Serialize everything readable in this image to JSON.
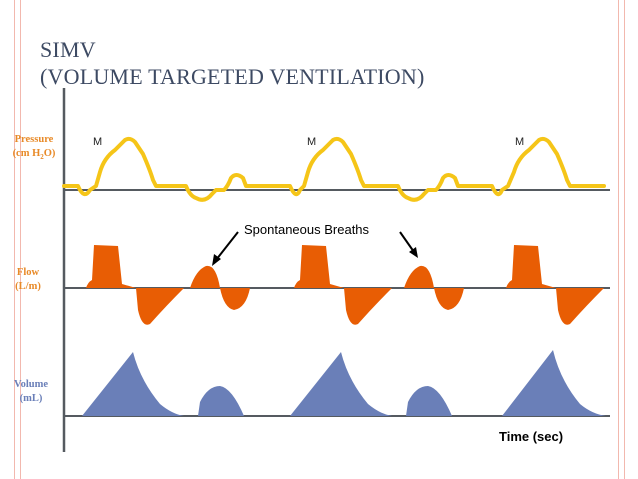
{
  "slide": {
    "title_line1": "SIMV",
    "title_line2": "(VOLUME TARGETED VENTILATION)"
  },
  "labels": {
    "pressure": "Pressure",
    "pressure_unit_pre": "(cm H",
    "pressure_unit_sub": "2",
    "pressure_unit_post": "O)",
    "flow": "Flow",
    "flow_unit": "(L/m)",
    "volume": "Volume",
    "volume_unit": "(mL)",
    "mandatory_marker": "M",
    "spontaneous": "Spontaneous Breaths",
    "time_axis": "Time (sec)"
  },
  "colors": {
    "pressure": "#f5c518",
    "flow": "#e85d04",
    "volume": "#6a7fb8",
    "axis": "#555a60",
    "border": "#f2b8ae",
    "title": "#3d4a63"
  }
}
